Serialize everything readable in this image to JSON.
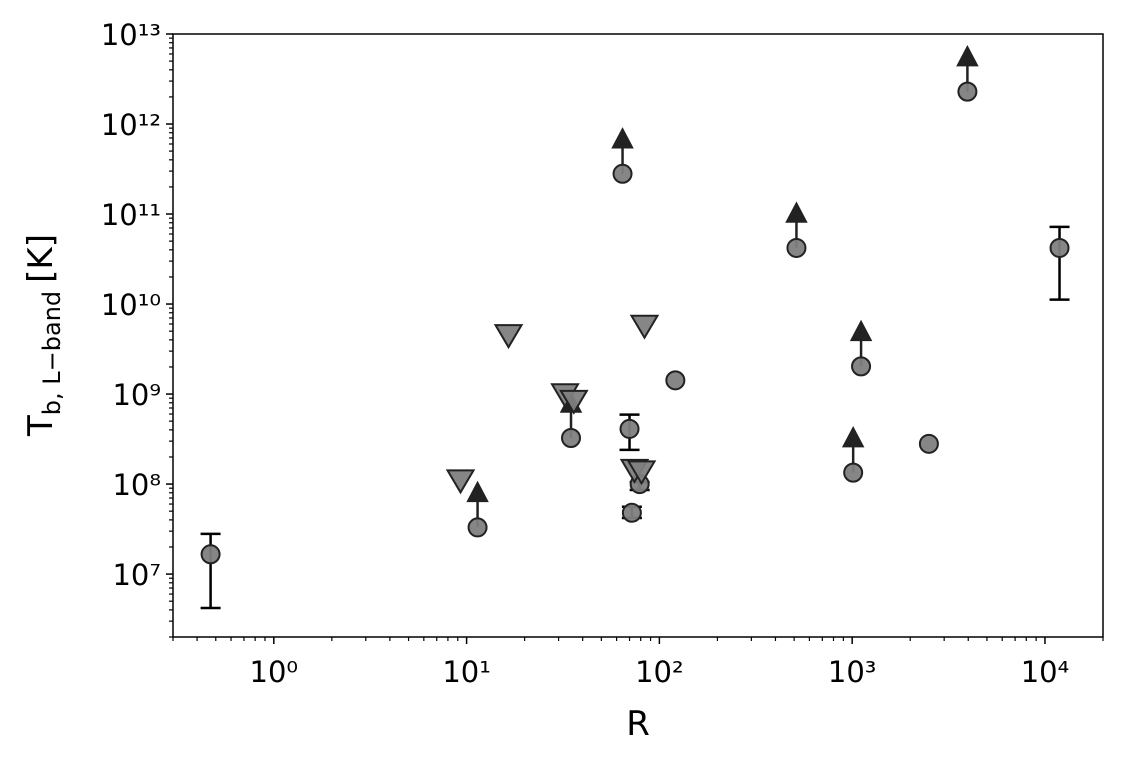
{
  "chart_data": {
    "type": "scatter",
    "xlabel": "R",
    "ylabel": "T",
    "ylabel_sub": "b, L−band",
    "ylabel_unit": "[K]",
    "xscale": "log",
    "yscale": "log",
    "xlim": [
      0.3,
      20000
    ],
    "ylim": [
      2000000,
      10000000000000
    ],
    "xticks": [
      {
        "value": 1,
        "label": "10⁰"
      },
      {
        "value": 10,
        "label": "10¹"
      },
      {
        "value": 100,
        "label": "10²"
      },
      {
        "value": 1000,
        "label": "10³"
      },
      {
        "value": 10000,
        "label": "10⁴"
      }
    ],
    "yticks": [
      {
        "value": 10000000,
        "label": "10⁷"
      },
      {
        "value": 100000000,
        "label": "10⁸"
      },
      {
        "value": 1000000000,
        "label": "10⁹"
      },
      {
        "value": 10000000000,
        "label": "10¹⁰"
      },
      {
        "value": 100000000000,
        "label": "10¹¹"
      },
      {
        "value": 1000000000000,
        "label": "10¹²"
      },
      {
        "value": 10000000000000,
        "label": "10¹³"
      }
    ],
    "series": [
      {
        "marker": "circle",
        "color": "#7f7f7f",
        "x": [
          0.47,
          70,
          72,
          79,
          121,
          2500,
          11900
        ],
        "values": [
          16600000,
          410000000,
          48000000,
          100000000,
          1420000000,
          280000000,
          42000000000
        ],
        "yerr_low": [
          4200000,
          240000000,
          42000000,
          86000000,
          null,
          null,
          11200000000
        ],
        "yerr_high": [
          28000000,
          590000000,
          56000000,
          105000000,
          null,
          null,
          72000000000
        ]
      },
      {
        "marker": "circle",
        "lower_limit": true,
        "color": "#7f7f7f",
        "x": [
          11.4,
          34.8,
          64.4,
          514,
          1012,
          1112,
          3960
        ],
        "values": [
          33000000,
          325000000,
          280000000000,
          42000000000,
          134000000,
          2030000000,
          2290000000000
        ]
      },
      {
        "marker": "triangle-down",
        "color": "#7f7f7f",
        "x": [
          9.3,
          16.5,
          32.4,
          36,
          74.3,
          80.8,
          83.7
        ],
        "values": [
          107000000,
          4400000000,
          970000000,
          820000000,
          140000000,
          135000000,
          5600000000
        ]
      }
    ]
  }
}
